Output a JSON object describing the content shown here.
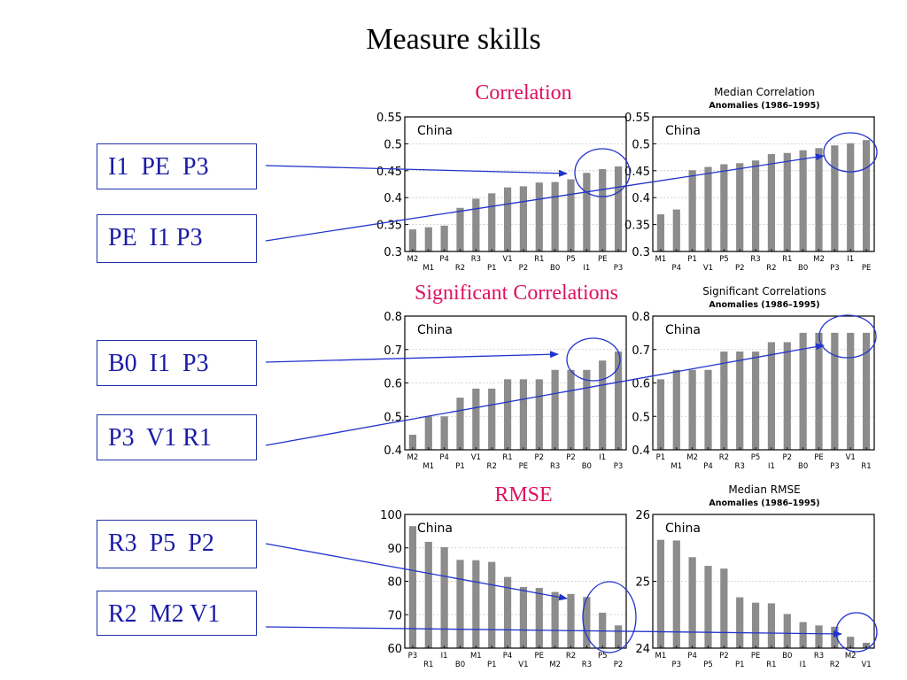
{
  "slide_title": "Measure skills",
  "section_titles": [
    "Correlation",
    "Significant Correlations",
    "RMSE"
  ],
  "label_boxes": [
    "I1  PE  P3",
    "PE  I1 P3",
    "B0  I1  P3",
    "P3  V1 R1",
    "R3  P5  P2",
    "R2  M2 V1"
  ],
  "colors": {
    "accent": "#e0115f",
    "box_text": "#1a1aa6",
    "arrow": "#2233cc",
    "bar": "#8c8c8c"
  },
  "chart_data": [
    {
      "type": "bar",
      "region": "China",
      "title": "",
      "subtitle": "",
      "yticks": [
        "0.55",
        "0.5",
        "0.45",
        "0.4",
        "0.35",
        "0.3"
      ],
      "ylim": [
        0.3,
        0.55
      ],
      "grid": true,
      "categories": [
        "M2",
        "M1",
        "P4",
        "R2",
        "R3",
        "P1",
        "V1",
        "P2",
        "R1",
        "B0",
        "P5",
        "I1",
        "PE",
        "P3"
      ],
      "values": [
        0.341,
        0.345,
        0.348,
        0.381,
        0.398,
        0.408,
        0.419,
        0.421,
        0.428,
        0.429,
        0.434,
        0.446,
        0.453,
        0.458
      ]
    },
    {
      "type": "bar",
      "region": "China",
      "title": "Median Correlation",
      "subtitle": "Anomalies (1986–1995)",
      "yticks": [
        "0.55",
        "0.5",
        "0.45",
        "0.4",
        "0.35",
        "0.3"
      ],
      "ylim": [
        0.3,
        0.55
      ],
      "grid": true,
      "categories": [
        "M1",
        "P4",
        "P1",
        "V1",
        "P5",
        "P2",
        "R3",
        "R2",
        "R1",
        "B0",
        "M2",
        "P3",
        "I1",
        "PE"
      ],
      "values": [
        0.369,
        0.378,
        0.451,
        0.457,
        0.462,
        0.464,
        0.469,
        0.481,
        0.483,
        0.488,
        0.492,
        0.497,
        0.501,
        0.507
      ]
    },
    {
      "type": "bar",
      "region": "China",
      "title": "",
      "subtitle": "",
      "yticks": [
        "0.8",
        "0.7",
        "0.6",
        "0.5",
        "0.4"
      ],
      "ylim": [
        0.4,
        0.8
      ],
      "grid": true,
      "categories": [
        "M2",
        "M1",
        "P4",
        "P1",
        "V1",
        "R2",
        "R1",
        "PE",
        "P2",
        "R3",
        "P2",
        "B0",
        "I1",
        "P3"
      ],
      "values": [
        0.445,
        0.5,
        0.5,
        0.556,
        0.583,
        0.583,
        0.611,
        0.611,
        0.611,
        0.639,
        0.639,
        0.639,
        0.667,
        0.694
      ]
    },
    {
      "type": "bar",
      "region": "China",
      "title": "Significant Correlations",
      "subtitle": "Anomalies (1986–1995)",
      "yticks": [
        "0.8",
        "0.7",
        "0.6",
        "0.5",
        "0.4"
      ],
      "ylim": [
        0.4,
        0.8
      ],
      "grid": true,
      "categories": [
        "P1",
        "M1",
        "M2",
        "P4",
        "R2",
        "R3",
        "P5",
        "I1",
        "P2",
        "B0",
        "PE",
        "P3",
        "V1",
        "R1"
      ],
      "values": [
        0.611,
        0.639,
        0.639,
        0.639,
        0.694,
        0.694,
        0.694,
        0.722,
        0.722,
        0.75,
        0.75,
        0.75,
        0.75,
        0.75
      ]
    },
    {
      "type": "bar",
      "region": "China",
      "title": "",
      "subtitle": "",
      "yticks": [
        "100",
        "90",
        "80",
        "70",
        "60"
      ],
      "ylim": [
        60,
        100
      ],
      "grid": true,
      "categories": [
        "P3",
        "R1",
        "I1",
        "B0",
        "M1",
        "P1",
        "P4",
        "V1",
        "PE",
        "M2",
        "R2",
        "R3",
        "P5",
        "P2"
      ],
      "values": [
        96.5,
        91.8,
        90.2,
        86.4,
        86.3,
        85.8,
        81.3,
        78.3,
        78.0,
        76.8,
        76.2,
        75.3,
        70.6,
        66.8
      ]
    },
    {
      "type": "bar",
      "region": "China",
      "title": "Median RMSE",
      "subtitle": "Anomalies (1986–1995)",
      "yticks": [
        "26",
        "25",
        "24"
      ],
      "ylim": [
        24,
        26
      ],
      "grid": true,
      "categories": [
        "M1",
        "P3",
        "P4",
        "P5",
        "P2",
        "P1",
        "PE",
        "R1",
        "B0",
        "I1",
        "R3",
        "R2",
        "M2",
        "V1"
      ],
      "values": [
        25.62,
        25.61,
        25.36,
        25.23,
        25.19,
        24.76,
        24.68,
        24.67,
        24.51,
        24.39,
        24.34,
        24.32,
        24.17,
        24.08
      ]
    }
  ]
}
